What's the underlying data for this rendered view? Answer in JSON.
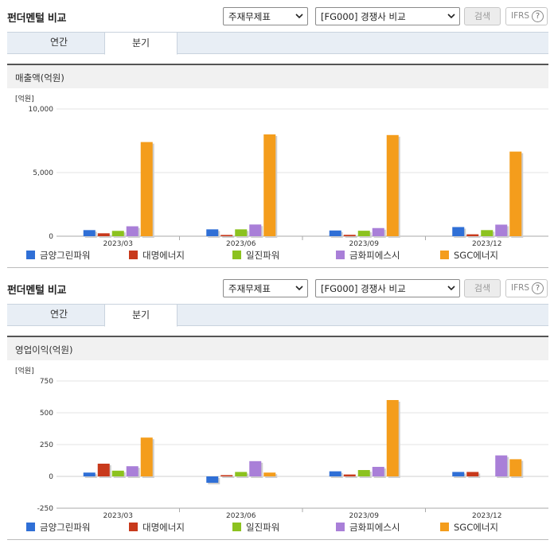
{
  "toolbar": {
    "select1": "주재무제표",
    "select2": "[FG000] 경쟁사 비교",
    "search": "검색",
    "ifrs": "IFRS",
    "help": "?"
  },
  "panels": [
    {
      "title": "펀더멘털 비교",
      "tabs": [
        "연간",
        "분기"
      ],
      "active_tab": 1,
      "section_title": "매출액(억원)"
    },
    {
      "title": "펀더멘털 비교",
      "tabs": [
        "연간",
        "분기"
      ],
      "active_tab": 1,
      "section_title": "영업이익(억원)"
    }
  ],
  "chart_data": [
    {
      "type": "bar",
      "unit_label": "[억원]",
      "categories": [
        "2023/03",
        "2023/06",
        "2023/09",
        "2023/12"
      ],
      "ylim": [
        0,
        10000
      ],
      "yticks": [
        0,
        5000,
        10000
      ],
      "ytick_labels": [
        "0",
        "5,000",
        "10,000"
      ],
      "series": [
        {
          "name": "금양그린파워",
          "color": "#2f6fd6",
          "values": [
            480,
            540,
            450,
            720
          ]
        },
        {
          "name": "대명에너지",
          "color": "#c8391b",
          "values": [
            230,
            100,
            110,
            150
          ]
        },
        {
          "name": "일진파워",
          "color": "#8cc21f",
          "values": [
            420,
            540,
            430,
            480
          ]
        },
        {
          "name": "금화피에스시",
          "color": "#a97fd8",
          "values": [
            780,
            920,
            640,
            910
          ]
        },
        {
          "name": "SGC에너지",
          "color": "#f49d1c",
          "values": [
            7400,
            8000,
            7950,
            6650
          ]
        }
      ]
    },
    {
      "type": "bar",
      "unit_label": "[억원]",
      "categories": [
        "2023/03",
        "2023/06",
        "2023/09",
        "2023/12"
      ],
      "ylim": [
        -250,
        750
      ],
      "yticks": [
        -250,
        0,
        250,
        500,
        750
      ],
      "ytick_labels": [
        "-250",
        "0",
        "250",
        "500",
        "750"
      ],
      "series": [
        {
          "name": "금양그린파워",
          "color": "#2f6fd6",
          "values": [
            30,
            -50,
            40,
            35
          ]
        },
        {
          "name": "대명에너지",
          "color": "#c8391b",
          "values": [
            100,
            10,
            15,
            35
          ]
        },
        {
          "name": "일진파워",
          "color": "#8cc21f",
          "values": [
            45,
            35,
            50,
            0
          ]
        },
        {
          "name": "금화피에스시",
          "color": "#a97fd8",
          "values": [
            80,
            120,
            75,
            165
          ]
        },
        {
          "name": "SGC에너지",
          "color": "#f49d1c",
          "values": [
            305,
            30,
            600,
            135
          ]
        }
      ]
    }
  ]
}
